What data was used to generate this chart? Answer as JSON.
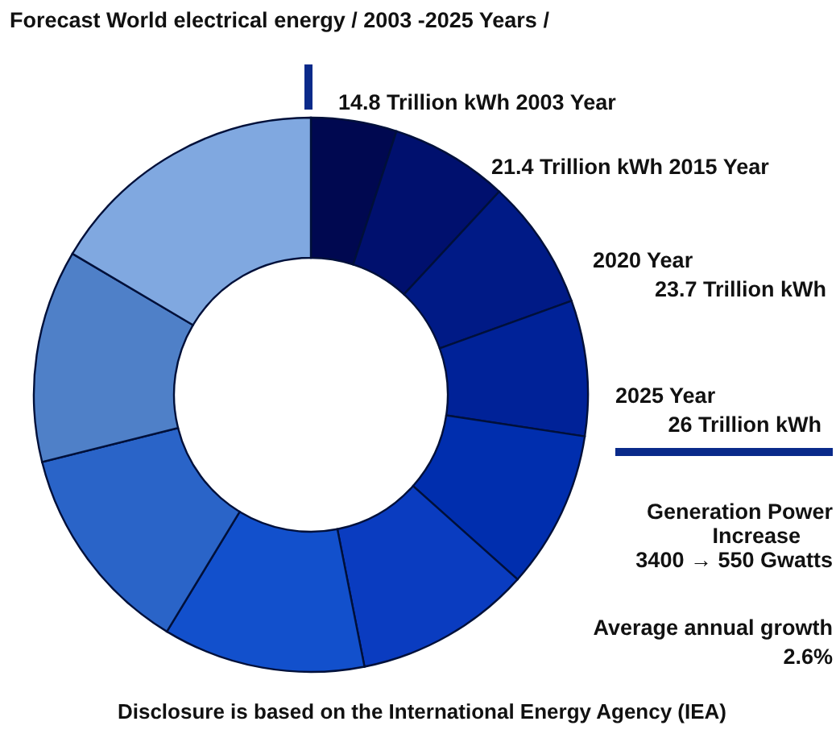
{
  "chart_data": {
    "type": "donut",
    "title": "Forecast  World  electrical energy / 2003 -2025 Years /",
    "categories": [
      null,
      null,
      null,
      null,
      null,
      null,
      null,
      null,
      null,
      null
    ],
    "values": [
      5,
      6.9,
      7.6,
      7.9,
      9.2,
      10.3,
      11.8,
      12.4,
      12.4,
      16.5
    ],
    "colors": [
      "#000850",
      "#00106e",
      "#001a86",
      "#002298",
      "#002eae",
      "#0a3cc0",
      "#1250cc",
      "#2a64c8",
      "#4f80c8",
      "#80a8e0"
    ],
    "annotations": [
      "14.8 Trillion kWh  2003 Year",
      "21.4 Trillion kWh  2015 Year",
      "2020 Year\n23.7 Trillion kWh",
      "2025 Year\n26 Trillion kWh",
      "Generation Power\nIncrease\n3400 → 550 Gwatts",
      "Average annual growth\n2.6%",
      "Disclosure is based on the  International Energy Agency (IEA)"
    ]
  }
}
